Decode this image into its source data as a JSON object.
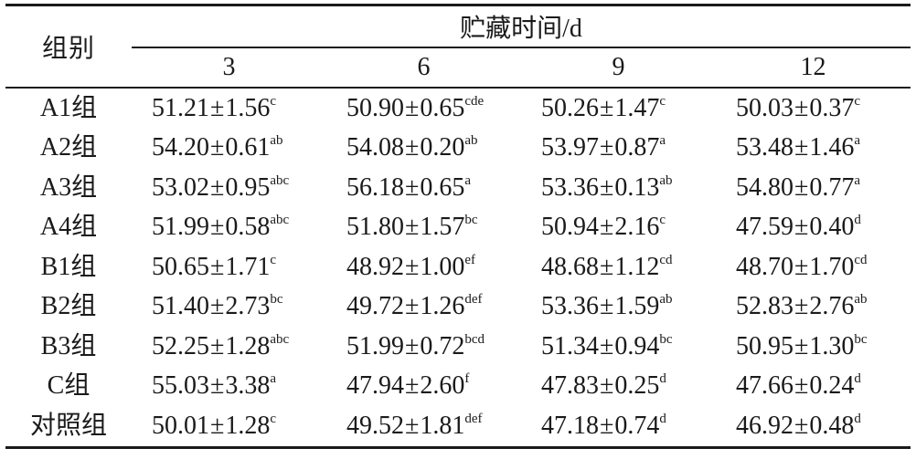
{
  "header": {
    "group_label": "组别",
    "span_label": "贮藏时间/d",
    "days": [
      "3",
      "6",
      "9",
      "12"
    ]
  },
  "rows": [
    {
      "group": "A1组",
      "cells": [
        {
          "mean": "51.21",
          "sd": "1.56",
          "sig": "c"
        },
        {
          "mean": "50.90",
          "sd": "0.65",
          "sig": "cde"
        },
        {
          "mean": "50.26",
          "sd": "1.47",
          "sig": "c"
        },
        {
          "mean": "50.03",
          "sd": "0.37",
          "sig": "c"
        }
      ]
    },
    {
      "group": "A2组",
      "cells": [
        {
          "mean": "54.20",
          "sd": "0.61",
          "sig": "ab"
        },
        {
          "mean": "54.08",
          "sd": "0.20",
          "sig": "ab"
        },
        {
          "mean": "53.97",
          "sd": "0.87",
          "sig": "a"
        },
        {
          "mean": "53.48",
          "sd": "1.46",
          "sig": "a"
        }
      ]
    },
    {
      "group": "A3组",
      "cells": [
        {
          "mean": "53.02",
          "sd": "0.95",
          "sig": "abc"
        },
        {
          "mean": "56.18",
          "sd": "0.65",
          "sig": "a"
        },
        {
          "mean": "53.36",
          "sd": "0.13",
          "sig": "ab"
        },
        {
          "mean": "54.80",
          "sd": "0.77",
          "sig": "a"
        }
      ]
    },
    {
      "group": "A4组",
      "cells": [
        {
          "mean": "51.99",
          "sd": "0.58",
          "sig": "abc"
        },
        {
          "mean": "51.80",
          "sd": "1.57",
          "sig": "bc"
        },
        {
          "mean": "50.94",
          "sd": "2.16",
          "sig": "c"
        },
        {
          "mean": "47.59",
          "sd": "0.40",
          "sig": "d"
        }
      ]
    },
    {
      "group": "B1组",
      "cells": [
        {
          "mean": "50.65",
          "sd": "1.71",
          "sig": "c"
        },
        {
          "mean": "48.92",
          "sd": "1.00",
          "sig": "ef"
        },
        {
          "mean": "48.68",
          "sd": "1.12",
          "sig": "cd"
        },
        {
          "mean": "48.70",
          "sd": "1.70",
          "sig": "cd"
        }
      ]
    },
    {
      "group": "B2组",
      "cells": [
        {
          "mean": "51.40",
          "sd": "2.73",
          "sig": "bc"
        },
        {
          "mean": "49.72",
          "sd": "1.26",
          "sig": "def"
        },
        {
          "mean": "53.36",
          "sd": "1.59",
          "sig": "ab"
        },
        {
          "mean": "52.83",
          "sd": "2.76",
          "sig": "ab"
        }
      ]
    },
    {
      "group": "B3组",
      "cells": [
        {
          "mean": "52.25",
          "sd": "1.28",
          "sig": "abc"
        },
        {
          "mean": "51.99",
          "sd": "0.72",
          "sig": "bcd"
        },
        {
          "mean": "51.34",
          "sd": "0.94",
          "sig": "bc"
        },
        {
          "mean": "50.95",
          "sd": "1.30",
          "sig": "bc"
        }
      ]
    },
    {
      "group": "C组",
      "cells": [
        {
          "mean": "55.03",
          "sd": "3.38",
          "sig": "a"
        },
        {
          "mean": "47.94",
          "sd": "2.60",
          "sig": "f"
        },
        {
          "mean": "47.83",
          "sd": "0.25",
          "sig": "d"
        },
        {
          "mean": "47.66",
          "sd": "0.24",
          "sig": "d"
        }
      ]
    },
    {
      "group": "对照组",
      "cells": [
        {
          "mean": "50.01",
          "sd": "1.28",
          "sig": "c"
        },
        {
          "mean": "49.52",
          "sd": "1.81",
          "sig": "def"
        },
        {
          "mean": "47.18",
          "sd": "0.74",
          "sig": "d"
        },
        {
          "mean": "46.92",
          "sd": "0.48",
          "sig": "d"
        }
      ]
    }
  ],
  "pm_symbol": "±"
}
